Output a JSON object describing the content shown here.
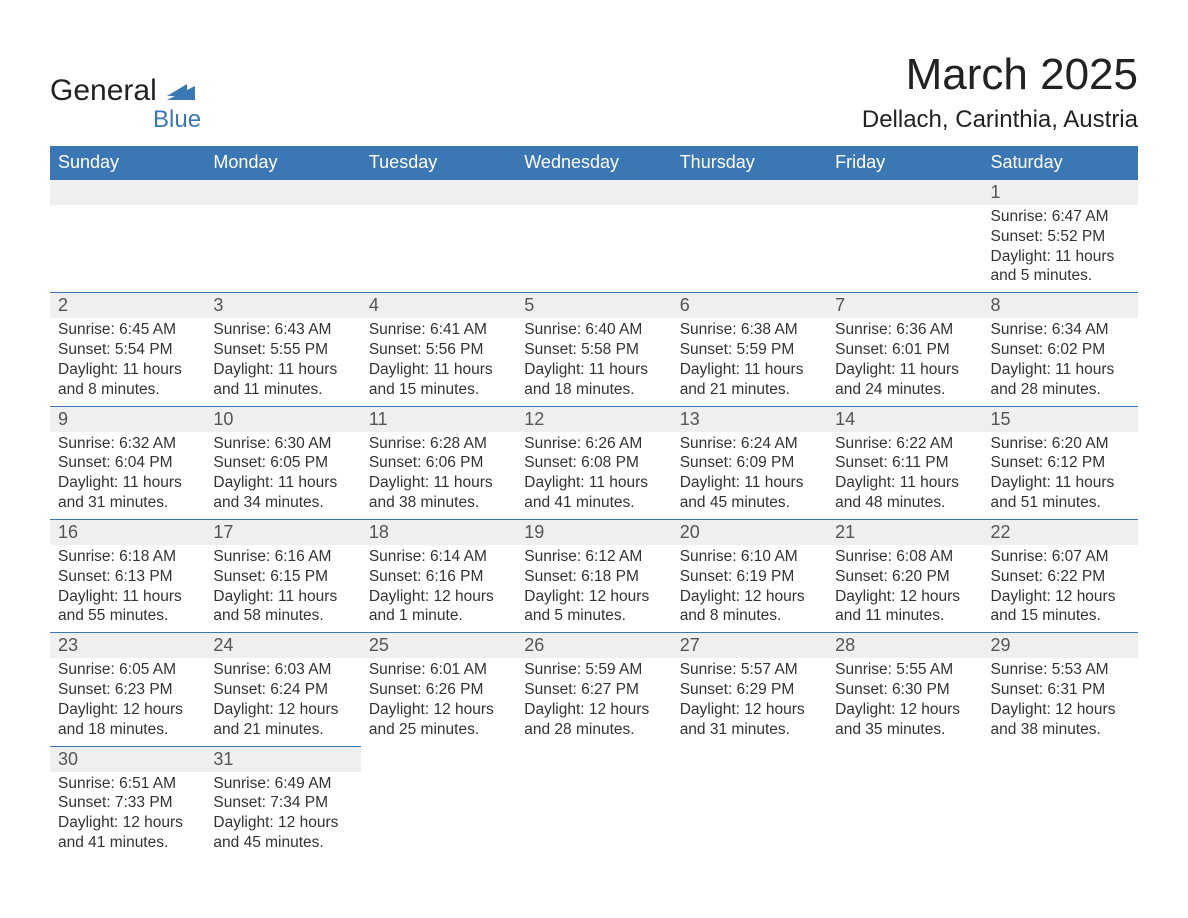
{
  "logo": {
    "main": "General",
    "sub": "Blue",
    "flag_color": "#3c77b5"
  },
  "title": "March 2025",
  "location": "Dellach, Carinthia, Austria",
  "theme": {
    "header_bg": "#3c77b5",
    "header_fg": "#ffffff",
    "daynum_bg": "#efefef",
    "row_border": "#3c77b5",
    "text_color": "#333333",
    "font_family": "Arial",
    "title_fontsize": 44,
    "location_fontsize": 24,
    "weekday_fontsize": 18,
    "daynum_fontsize": 18,
    "body_fontsize": 15.5
  },
  "weekdays": [
    "Sunday",
    "Monday",
    "Tuesday",
    "Wednesday",
    "Thursday",
    "Friday",
    "Saturday"
  ],
  "weeks": [
    [
      null,
      null,
      null,
      null,
      null,
      null,
      {
        "n": "1",
        "sr": "Sunrise: 6:47 AM",
        "ss": "Sunset: 5:52 PM",
        "dl": "Daylight: 11 hours and 5 minutes."
      }
    ],
    [
      {
        "n": "2",
        "sr": "Sunrise: 6:45 AM",
        "ss": "Sunset: 5:54 PM",
        "dl": "Daylight: 11 hours and 8 minutes."
      },
      {
        "n": "3",
        "sr": "Sunrise: 6:43 AM",
        "ss": "Sunset: 5:55 PM",
        "dl": "Daylight: 11 hours and 11 minutes."
      },
      {
        "n": "4",
        "sr": "Sunrise: 6:41 AM",
        "ss": "Sunset: 5:56 PM",
        "dl": "Daylight: 11 hours and 15 minutes."
      },
      {
        "n": "5",
        "sr": "Sunrise: 6:40 AM",
        "ss": "Sunset: 5:58 PM",
        "dl": "Daylight: 11 hours and 18 minutes."
      },
      {
        "n": "6",
        "sr": "Sunrise: 6:38 AM",
        "ss": "Sunset: 5:59 PM",
        "dl": "Daylight: 11 hours and 21 minutes."
      },
      {
        "n": "7",
        "sr": "Sunrise: 6:36 AM",
        "ss": "Sunset: 6:01 PM",
        "dl": "Daylight: 11 hours and 24 minutes."
      },
      {
        "n": "8",
        "sr": "Sunrise: 6:34 AM",
        "ss": "Sunset: 6:02 PM",
        "dl": "Daylight: 11 hours and 28 minutes."
      }
    ],
    [
      {
        "n": "9",
        "sr": "Sunrise: 6:32 AM",
        "ss": "Sunset: 6:04 PM",
        "dl": "Daylight: 11 hours and 31 minutes."
      },
      {
        "n": "10",
        "sr": "Sunrise: 6:30 AM",
        "ss": "Sunset: 6:05 PM",
        "dl": "Daylight: 11 hours and 34 minutes."
      },
      {
        "n": "11",
        "sr": "Sunrise: 6:28 AM",
        "ss": "Sunset: 6:06 PM",
        "dl": "Daylight: 11 hours and 38 minutes."
      },
      {
        "n": "12",
        "sr": "Sunrise: 6:26 AM",
        "ss": "Sunset: 6:08 PM",
        "dl": "Daylight: 11 hours and 41 minutes."
      },
      {
        "n": "13",
        "sr": "Sunrise: 6:24 AM",
        "ss": "Sunset: 6:09 PM",
        "dl": "Daylight: 11 hours and 45 minutes."
      },
      {
        "n": "14",
        "sr": "Sunrise: 6:22 AM",
        "ss": "Sunset: 6:11 PM",
        "dl": "Daylight: 11 hours and 48 minutes."
      },
      {
        "n": "15",
        "sr": "Sunrise: 6:20 AM",
        "ss": "Sunset: 6:12 PM",
        "dl": "Daylight: 11 hours and 51 minutes."
      }
    ],
    [
      {
        "n": "16",
        "sr": "Sunrise: 6:18 AM",
        "ss": "Sunset: 6:13 PM",
        "dl": "Daylight: 11 hours and 55 minutes."
      },
      {
        "n": "17",
        "sr": "Sunrise: 6:16 AM",
        "ss": "Sunset: 6:15 PM",
        "dl": "Daylight: 11 hours and 58 minutes."
      },
      {
        "n": "18",
        "sr": "Sunrise: 6:14 AM",
        "ss": "Sunset: 6:16 PM",
        "dl": "Daylight: 12 hours and 1 minute."
      },
      {
        "n": "19",
        "sr": "Sunrise: 6:12 AM",
        "ss": "Sunset: 6:18 PM",
        "dl": "Daylight: 12 hours and 5 minutes."
      },
      {
        "n": "20",
        "sr": "Sunrise: 6:10 AM",
        "ss": "Sunset: 6:19 PM",
        "dl": "Daylight: 12 hours and 8 minutes."
      },
      {
        "n": "21",
        "sr": "Sunrise: 6:08 AM",
        "ss": "Sunset: 6:20 PM",
        "dl": "Daylight: 12 hours and 11 minutes."
      },
      {
        "n": "22",
        "sr": "Sunrise: 6:07 AM",
        "ss": "Sunset: 6:22 PM",
        "dl": "Daylight: 12 hours and 15 minutes."
      }
    ],
    [
      {
        "n": "23",
        "sr": "Sunrise: 6:05 AM",
        "ss": "Sunset: 6:23 PM",
        "dl": "Daylight: 12 hours and 18 minutes."
      },
      {
        "n": "24",
        "sr": "Sunrise: 6:03 AM",
        "ss": "Sunset: 6:24 PM",
        "dl": "Daylight: 12 hours and 21 minutes."
      },
      {
        "n": "25",
        "sr": "Sunrise: 6:01 AM",
        "ss": "Sunset: 6:26 PM",
        "dl": "Daylight: 12 hours and 25 minutes."
      },
      {
        "n": "26",
        "sr": "Sunrise: 5:59 AM",
        "ss": "Sunset: 6:27 PM",
        "dl": "Daylight: 12 hours and 28 minutes."
      },
      {
        "n": "27",
        "sr": "Sunrise: 5:57 AM",
        "ss": "Sunset: 6:29 PM",
        "dl": "Daylight: 12 hours and 31 minutes."
      },
      {
        "n": "28",
        "sr": "Sunrise: 5:55 AM",
        "ss": "Sunset: 6:30 PM",
        "dl": "Daylight: 12 hours and 35 minutes."
      },
      {
        "n": "29",
        "sr": "Sunrise: 5:53 AM",
        "ss": "Sunset: 6:31 PM",
        "dl": "Daylight: 12 hours and 38 minutes."
      }
    ],
    [
      {
        "n": "30",
        "sr": "Sunrise: 6:51 AM",
        "ss": "Sunset: 7:33 PM",
        "dl": "Daylight: 12 hours and 41 minutes."
      },
      {
        "n": "31",
        "sr": "Sunrise: 6:49 AM",
        "ss": "Sunset: 7:34 PM",
        "dl": "Daylight: 12 hours and 45 minutes."
      },
      null,
      null,
      null,
      null,
      null
    ]
  ]
}
